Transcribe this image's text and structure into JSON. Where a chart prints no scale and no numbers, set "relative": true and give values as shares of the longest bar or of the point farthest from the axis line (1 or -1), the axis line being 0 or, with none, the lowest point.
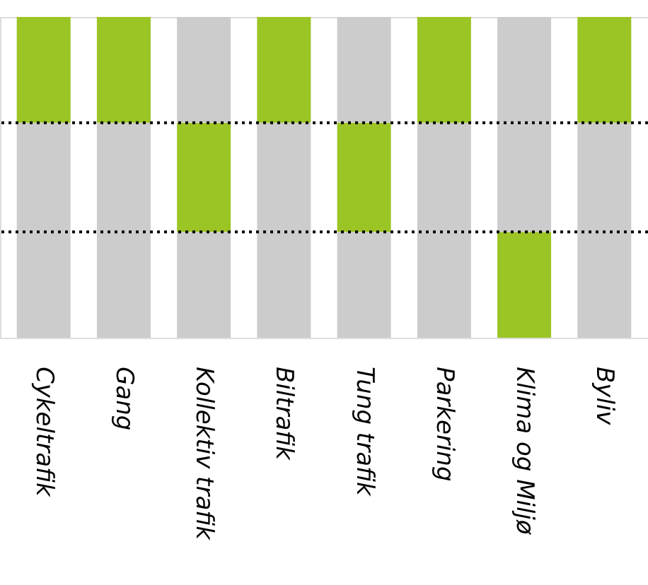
{
  "chart_data": {
    "type": "bar",
    "relative": true,
    "stacked": true,
    "grid": false,
    "categories": [
      "Cykeltrafik",
      "Gang",
      "Kollektiv trafik",
      "Biltrafik",
      "Tung trafik",
      "Parkering",
      "Klima og Miljø",
      "Byliv"
    ],
    "series": [
      {
        "values": [
          0.33,
          0.33,
          0.33,
          0.33,
          0.33,
          0.33,
          0.33,
          0.33
        ],
        "colors": [
          "#cccccc",
          "#cccccc",
          "#cccccc",
          "#cccccc",
          "#cccccc",
          "#cccccc",
          "#9bc425",
          "#cccccc"
        ]
      },
      {
        "values": [
          0.34,
          0.34,
          0.34,
          0.34,
          0.34,
          0.34,
          0.34,
          0.34
        ],
        "colors": [
          "#cccccc",
          "#cccccc",
          "#9bc425",
          "#cccccc",
          "#9bc425",
          "#cccccc",
          "#cccccc",
          "#cccccc"
        ]
      },
      {
        "values": [
          0.33,
          0.33,
          0.33,
          0.33,
          0.33,
          0.33,
          0.33,
          0.33
        ],
        "colors": [
          "#9bc425",
          "#9bc425",
          "#cccccc",
          "#9bc425",
          "#cccccc",
          "#9bc425",
          "#cccccc",
          "#9bc425"
        ]
      }
    ],
    "ref_lines": [
      {
        "axis": "y",
        "value": 0.33,
        "color": "#000000",
        "line_style": "dotted"
      },
      {
        "axis": "y",
        "value": 0.67,
        "color": "#000000",
        "line_style": "dotted"
      }
    ]
  }
}
